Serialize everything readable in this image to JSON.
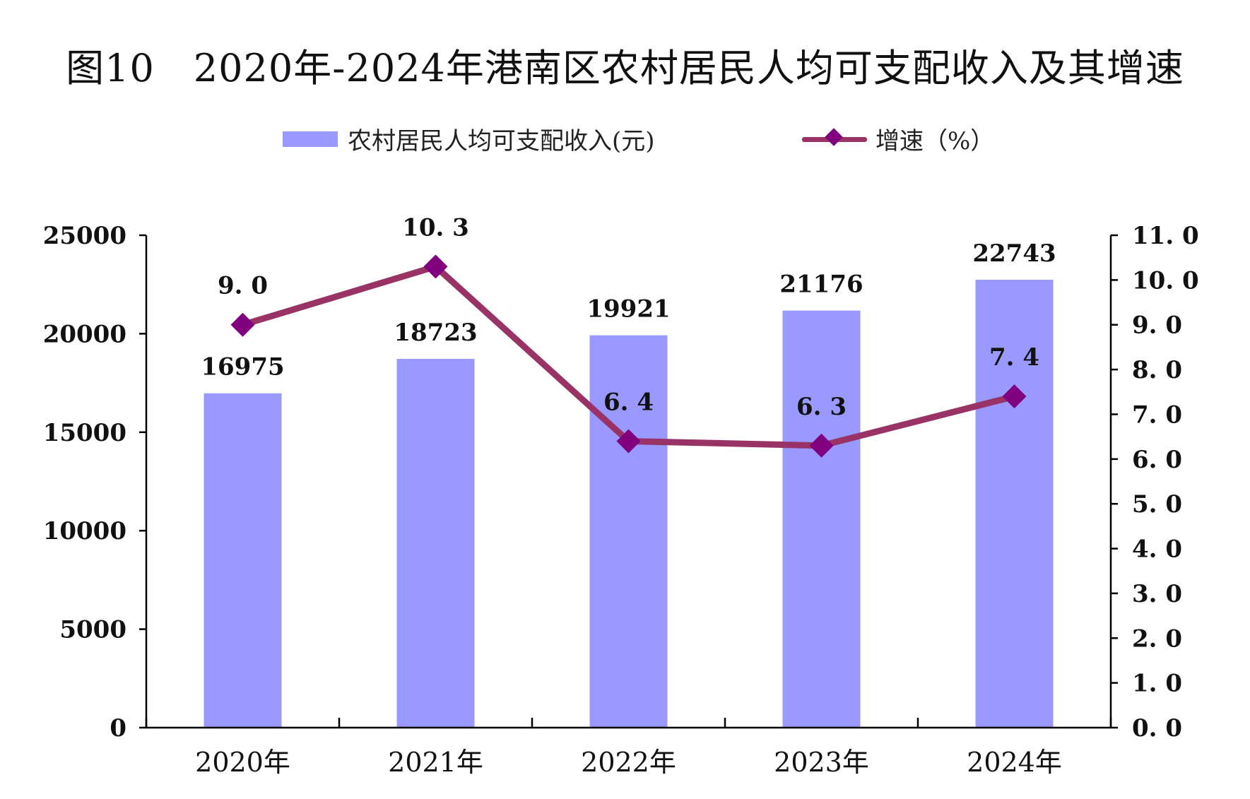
{
  "title": "图10　2020年-2024年港南区农村居民人均可支配收入及其增速",
  "legend": {
    "bar_label": "农村居民人均可支配收入(元)",
    "line_label": "增速（%）"
  },
  "colors": {
    "bar": "#9999ff",
    "line": "#993366",
    "marker": "#800080"
  },
  "chart_data": {
    "type": "bar",
    "categories": [
      "2020年",
      "2021年",
      "2022年",
      "2023年",
      "2024年"
    ],
    "series": [
      {
        "name": "农村居民人均可支配收入(元)",
        "type": "bar",
        "axis": "left",
        "values": [
          16975,
          18723,
          19921,
          21176,
          22743
        ]
      },
      {
        "name": "增速（%）",
        "type": "line",
        "axis": "right",
        "values": [
          9.0,
          10.3,
          6.4,
          6.3,
          7.4
        ]
      }
    ],
    "bar_labels": [
      "16975",
      "18723",
      "19921",
      "21176",
      "22743"
    ],
    "line_labels": [
      "9. 0",
      "10. 3",
      "6. 4",
      "6. 3",
      "7. 4"
    ],
    "y_left": {
      "min": 0,
      "max": 25000,
      "ticks": [
        "0",
        "5000",
        "10000",
        "15000",
        "20000",
        "25000"
      ]
    },
    "y_right": {
      "min": 0,
      "max": 11,
      "ticks": [
        "0. 0",
        "1. 0",
        "2. 0",
        "3. 0",
        "4. 0",
        "5. 0",
        "6. 0",
        "7. 0",
        "8. 0",
        "9. 0",
        "10. 0",
        "11. 0"
      ]
    },
    "grid": false,
    "legend_position": "top"
  }
}
